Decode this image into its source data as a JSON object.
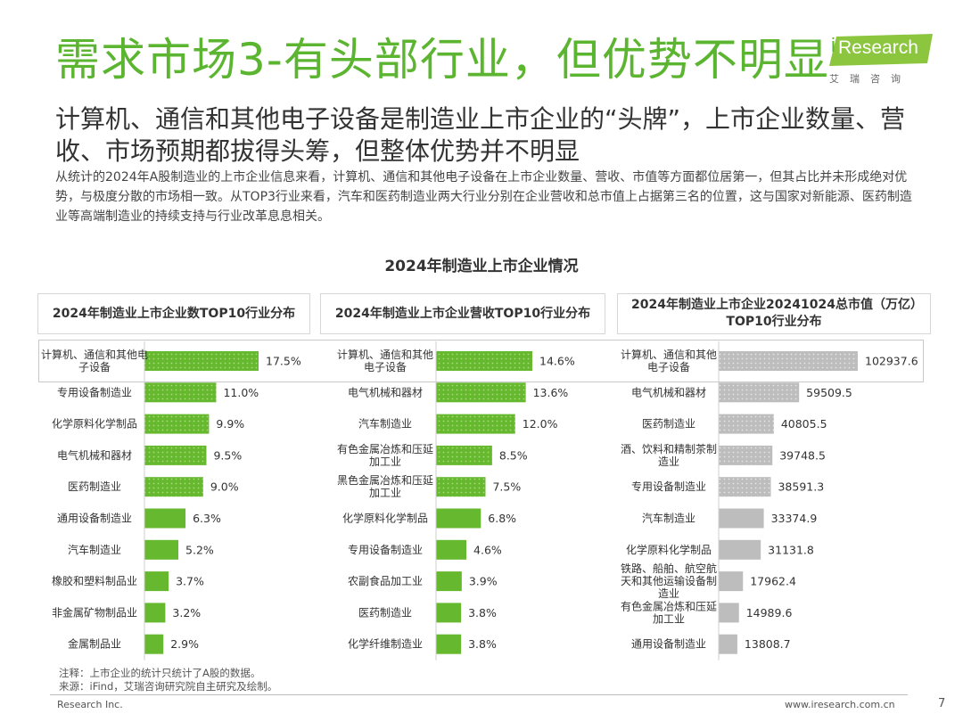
{
  "title": "需求市场3-有头部行业，但优势不明显",
  "logo": {
    "prefix": "i",
    "name": "Research",
    "sub": "艾瑞咨询"
  },
  "subtitle": "计算机、通信和其他电子设备是制造业上市企业的“头牌”，上市企业数量、营收、市场预期都拔得头筹，但整体优势并不明显",
  "description": "从统计的2024年A股制造业的上市企业信息来看，计算机、通信和其他电子设备在上市企业数量、营收、市值等方面都位居第一，但其占比并未形成绝对优势，与极度分散的市场相一致。从TOP3行业来看，汽车和医药制造业两大行业分别在企业营收和总市值上占据第三名的位置，这与国家对新能源、医药制造业等高端制造业的持续支持与行业改革息息相关。",
  "chart_title": "2024年制造业上市企业情况",
  "colors": {
    "green": "#66b92f",
    "gray": "#bdbdbd",
    "title_green": "#5cb531"
  },
  "chart_data": [
    {
      "type": "bar",
      "orientation": "horizontal",
      "title": "2024年制造业上市企业数TOP10行业分布",
      "categories": [
        "计算机、通信和其他电子设备",
        "专用设备制造业",
        "化学原料化学制品",
        "电气机械和器材",
        "医药制造业",
        "通用设备制造业",
        "汽车制造业",
        "橡胶和塑料制品业",
        "非金属矿物制品业",
        "金属制品业"
      ],
      "values": [
        17.5,
        11.0,
        9.9,
        9.5,
        9.0,
        6.3,
        5.2,
        3.7,
        3.2,
        2.9
      ],
      "labels": [
        "17.5%",
        "11.0%",
        "9.9%",
        "9.5%",
        "9.0%",
        "6.3%",
        "5.2%",
        "3.7%",
        "3.2%",
        "2.9%"
      ],
      "unit": "%"
    },
    {
      "type": "bar",
      "orientation": "horizontal",
      "title": "2024年制造业上市企业营收TOP10行业分布",
      "categories": [
        "计算机、通信和其他电子设备",
        "电气机械和器材",
        "汽车制造业",
        "有色金属冶炼和压延加工业",
        "黑色金属冶炼和压延加工业",
        "化学原料化学制品",
        "专用设备制造业",
        "农副食品加工业",
        "医药制造业",
        "化学纤维制造业"
      ],
      "values": [
        14.6,
        13.6,
        12.0,
        8.5,
        7.5,
        6.8,
        4.6,
        3.9,
        3.8,
        3.8
      ],
      "labels": [
        "14.6%",
        "13.6%",
        "12.0%",
        "8.5%",
        "7.5%",
        "6.8%",
        "4.6%",
        "3.9%",
        "3.8%",
        "3.8%"
      ],
      "unit": "%"
    },
    {
      "type": "bar",
      "orientation": "horizontal",
      "title": "2024年制造业上市企业20241024总市值（万亿）TOP10行业分布",
      "categories": [
        "计算机、通信和其他电子设备",
        "电气机械和器材",
        "医药制造业",
        "酒、饮料和精制茶制造业",
        "专用设备制造业",
        "汽车制造业",
        "化学原料化学制品",
        "铁路、船舶、航空航天和其他运输设备制造业",
        "有色金属冶炼和压延加工业",
        "通用设备制造业"
      ],
      "values": [
        102937.6,
        59509.5,
        40805.5,
        39748.5,
        38591.3,
        33374.9,
        31131.8,
        17962.4,
        14989.6,
        13808.7
      ],
      "labels": [
        "102937.6",
        "59509.5",
        "40805.5",
        "39748.5",
        "38591.3",
        "33374.9",
        "31131.8",
        "17962.4",
        "14989.6",
        "13808.7"
      ],
      "unit": "万亿"
    }
  ],
  "notes": {
    "line1": "注释：上市企业的统计只统计了A股的数据。",
    "line2": "来源：iFind，艾瑞咨询研究院自主研究及绘制。"
  },
  "footer": {
    "left": "Research Inc.",
    "right": "www.iresearch.com.cn",
    "page": "7"
  }
}
